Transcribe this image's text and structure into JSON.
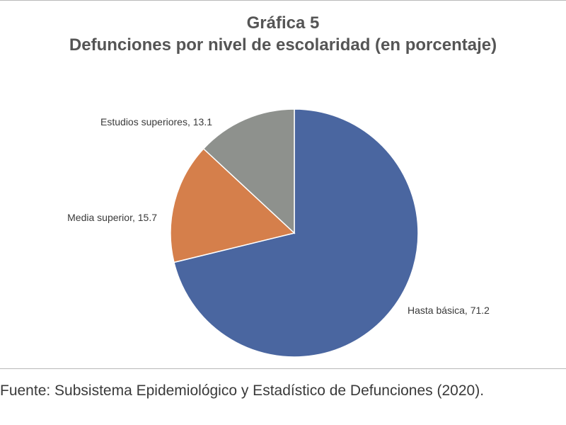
{
  "chart_data": {
    "type": "pie",
    "title": "Gráfica 5",
    "subtitle": "Defunciones por nivel de escolaridad (en porcentaje)",
    "slices": [
      {
        "label": "Hasta básica",
        "value": 71.2,
        "color": "#4a66a0",
        "display": "Hasta básica, 71.2"
      },
      {
        "label": "Media superior",
        "value": 15.7,
        "color": "#d57f4b",
        "display": "Media superior, 15.7"
      },
      {
        "label": "Estudios superiores",
        "value": 13.1,
        "color": "#8e918d",
        "display": "Estudios superiores, 13.1"
      }
    ],
    "start_angle": "12 o'clock",
    "direction": "clockwise"
  },
  "source": "Fuente: Subsistema Epidemiológico y Estadístico de Defunciones (2020)."
}
